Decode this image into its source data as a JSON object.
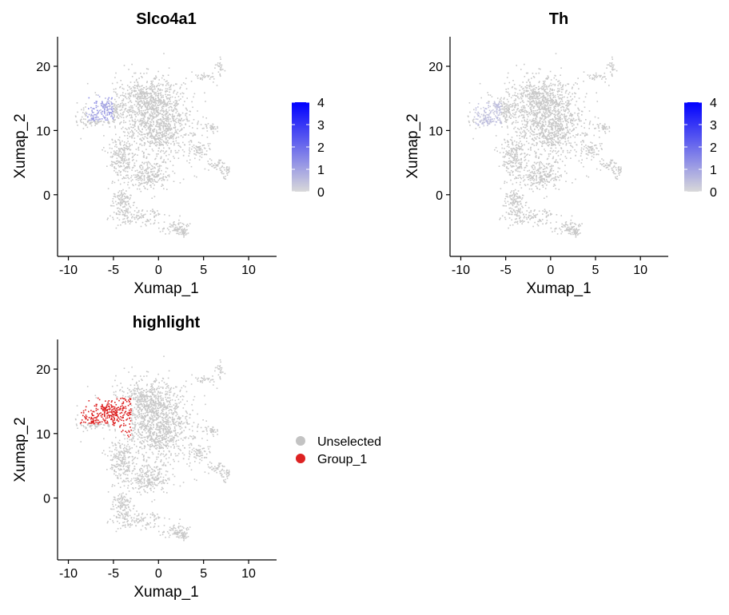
{
  "colors": {
    "cell_grey": "#c8c8c8",
    "low": "#d9d9d9",
    "high": "#0000ff",
    "highlight": "#dd2222",
    "unselected": "#c3c3c3"
  },
  "chart_data": [
    {
      "id": "slco4a1",
      "type": "scatter",
      "title": "Slco4a1",
      "xlabel": "Xumap_1",
      "ylabel": "Xumap_2",
      "xlim": [
        -11.2,
        13.1
      ],
      "ylim": [
        -9.6,
        24.6
      ],
      "xticks": [
        -10,
        -5,
        0,
        5,
        10
      ],
      "xtick_labels": [
        "-10",
        "-5",
        "0",
        "5",
        "10"
      ],
      "yticks": [
        0,
        10,
        20
      ],
      "ytick_labels": [
        "0",
        "10",
        "20"
      ],
      "expression_region": {
        "x": [
          -8.0,
          -5.0
        ],
        "y": [
          11.5,
          15.5
        ],
        "level": 1.1
      },
      "legend": {
        "type": "colorbar",
        "range": [
          0,
          4
        ],
        "ticks": [
          0,
          1,
          2,
          3,
          4
        ],
        "tick_labels": [
          "0",
          "1",
          "2",
          "3",
          "4"
        ]
      }
    },
    {
      "id": "th",
      "type": "scatter",
      "title": "Th",
      "xlabel": "Xumap_1",
      "ylabel": "Xumap_2",
      "xlim": [
        -11.2,
        13.1
      ],
      "ylim": [
        -9.6,
        24.6
      ],
      "xticks": [
        -10,
        -5,
        0,
        5,
        10
      ],
      "xtick_labels": [
        "-10",
        "-5",
        "0",
        "5",
        "10"
      ],
      "yticks": [
        0,
        10,
        20
      ],
      "ytick_labels": [
        "0",
        "10",
        "20"
      ],
      "expression_region": {
        "x": [
          -8.5,
          -5.5
        ],
        "y": [
          10.5,
          14.5
        ],
        "level": 0.5
      },
      "legend": {
        "type": "colorbar",
        "range": [
          0,
          4
        ],
        "ticks": [
          0,
          1,
          2,
          3,
          4
        ],
        "tick_labels": [
          "0",
          "1",
          "2",
          "3",
          "4"
        ]
      }
    },
    {
      "id": "highlight",
      "type": "scatter",
      "title": "highlight",
      "xlabel": "Xumap_1",
      "ylabel": "Xumap_2",
      "xlim": [
        -11.2,
        13.1
      ],
      "ylim": [
        -9.6,
        24.6
      ],
      "xticks": [
        -10,
        -5,
        0,
        5,
        10
      ],
      "xtick_labels": [
        "-10",
        "-5",
        "0",
        "5",
        "10"
      ],
      "yticks": [
        0,
        10,
        20
      ],
      "ytick_labels": [
        "0",
        "10",
        "20"
      ],
      "highlight_region": {
        "x": [
          -8.8,
          -3.0
        ],
        "y": [
          9.0,
          15.5
        ]
      },
      "legend": {
        "type": "categorical",
        "entries": [
          {
            "label": "Unselected",
            "color": "#c3c3c3"
          },
          {
            "label": "Group_1",
            "color": "#dd2222"
          }
        ]
      }
    }
  ]
}
